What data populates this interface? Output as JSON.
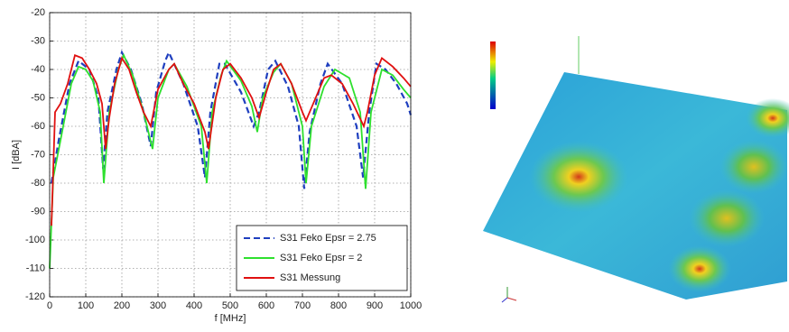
{
  "chart_data": {
    "type": "line",
    "xlabel": "f [MHz]",
    "ylabel": "I [dBA]",
    "xlim": [
      0,
      1000
    ],
    "xticks": [
      0,
      100,
      200,
      300,
      400,
      500,
      600,
      700,
      800,
      900,
      1000
    ],
    "ylim": [
      -120,
      -20
    ],
    "yticks": [
      -120,
      -110,
      -100,
      -90,
      -80,
      -70,
      -60,
      -50,
      -40,
      -30,
      -20
    ],
    "grid": true,
    "legend": "lower right",
    "series": [
      {
        "name": "S31 Feko Epsr = 2.75",
        "color": "#1f3fbf",
        "dash": true,
        "x": [
          5,
          25,
          55,
          80,
          110,
          135,
          148,
          160,
          185,
          200,
          225,
          255,
          280,
          295,
          320,
          330,
          370,
          410,
          430,
          445,
          470,
          485,
          530,
          565,
          580,
          605,
          625,
          660,
          690,
          705,
          720,
          750,
          770,
          810,
          850,
          868,
          885,
          905,
          930,
          960,
          990,
          1000
        ],
        "values": [
          -80,
          -65,
          -45,
          -37,
          -40,
          -50,
          -75,
          -55,
          -40,
          -34,
          -40,
          -52,
          -67,
          -48,
          -37,
          -34,
          -45,
          -60,
          -78,
          -55,
          -38,
          -38,
          -48,
          -60,
          -55,
          -40,
          -37,
          -46,
          -60,
          -82,
          -62,
          -45,
          -38,
          -45,
          -60,
          -78,
          -55,
          -38,
          -40,
          -45,
          -52,
          -56
        ]
      },
      {
        "name": "S31 Feko Epsr = 2",
        "color": "#2ee02e",
        "dash": false,
        "x": [
          0,
          10,
          30,
          60,
          80,
          100,
          120,
          140,
          150,
          165,
          190,
          205,
          230,
          260,
          285,
          300,
          330,
          345,
          380,
          420,
          435,
          450,
          475,
          490,
          530,
          560,
          575,
          590,
          620,
          640,
          670,
          700,
          710,
          725,
          760,
          790,
          830,
          860,
          875,
          890,
          920,
          950,
          980,
          1000
        ],
        "values": [
          -110,
          -78,
          -65,
          -45,
          -39,
          -40,
          -44,
          -55,
          -80,
          -55,
          -40,
          -35,
          -42,
          -55,
          -68,
          -50,
          -40,
          -38,
          -46,
          -60,
          -80,
          -55,
          -42,
          -37,
          -44,
          -53,
          -62,
          -50,
          -41,
          -38,
          -45,
          -60,
          -80,
          -60,
          -46,
          -40,
          -43,
          -55,
          -82,
          -55,
          -40,
          -42,
          -47,
          -50
        ]
      },
      {
        "name": "S31 Messung",
        "color": "#e01010",
        "dash": false,
        "x": [
          5,
          15,
          30,
          50,
          70,
          90,
          110,
          130,
          145,
          155,
          165,
          180,
          200,
          220,
          240,
          260,
          280,
          300,
          330,
          345,
          370,
          400,
          430,
          440,
          460,
          480,
          500,
          530,
          560,
          580,
          600,
          620,
          640,
          670,
          700,
          710,
          730,
          760,
          780,
          810,
          840,
          870,
          880,
          900,
          920,
          950,
          980,
          1000
        ],
        "values": [
          -95,
          -55,
          -52,
          -45,
          -35,
          -36,
          -40,
          -45,
          -52,
          -68,
          -57,
          -45,
          -36,
          -40,
          -48,
          -55,
          -60,
          -47,
          -40,
          -38,
          -45,
          -52,
          -62,
          -68,
          -50,
          -40,
          -38,
          -43,
          -50,
          -57,
          -48,
          -40,
          -38,
          -45,
          -55,
          -58,
          -52,
          -43,
          -42,
          -45,
          -52,
          -60,
          -55,
          -42,
          -36,
          -39,
          -43,
          -46
        ]
      }
    ]
  }
}
